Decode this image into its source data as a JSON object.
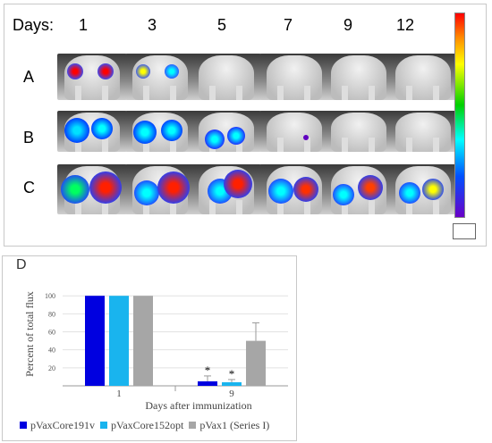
{
  "imaging": {
    "days_label": "Days:",
    "days": [
      "1",
      "3",
      "5",
      "7",
      "9",
      "12"
    ],
    "rows": [
      "A",
      "B",
      "C"
    ]
  },
  "panel_label": "D",
  "chart_data": {
    "type": "bar",
    "categories": [
      "1",
      "9"
    ],
    "series": [
      {
        "name": "pVaxCore191v",
        "values": [
          100,
          5
        ],
        "errors": [
          0,
          6
        ],
        "significant": [
          false,
          true
        ],
        "color": "#0000e0"
      },
      {
        "name": "pVaxCore152opt",
        "values": [
          100,
          4
        ],
        "errors": [
          0,
          3
        ],
        "significant": [
          false,
          true
        ],
        "color": "#19b4ee"
      },
      {
        "name": "pVax1 (Series I)",
        "values": [
          100,
          50
        ],
        "errors": [
          0,
          20
        ],
        "significant": [
          false,
          false
        ],
        "color": "#a6a6a6"
      }
    ],
    "yticks": [
      20,
      40,
      60,
      80,
      100
    ],
    "ylim": [
      0,
      125
    ],
    "ylabel": "Percent of total flux",
    "xlabel": "Days after immunization",
    "significance_mark": "*",
    "legend_position": "bottom"
  }
}
